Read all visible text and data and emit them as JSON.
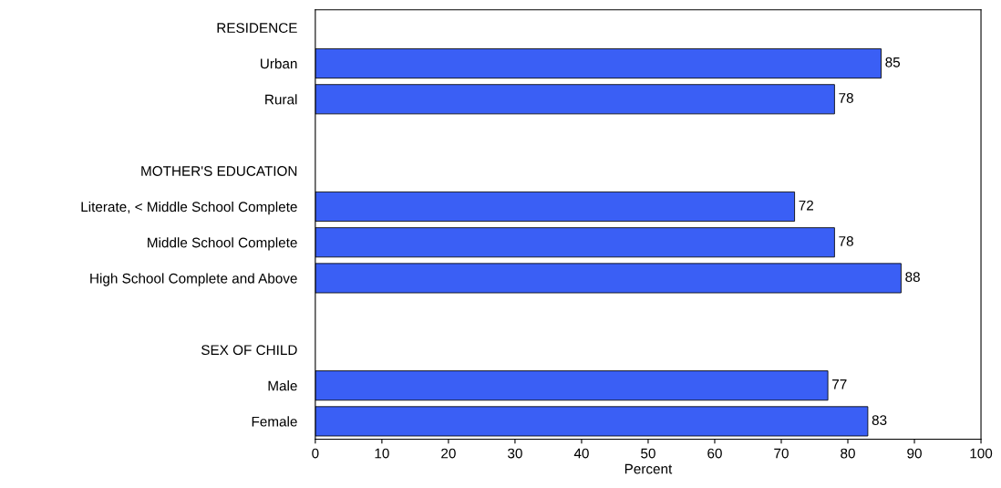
{
  "chart_data": {
    "type": "bar",
    "orientation": "horizontal",
    "xlabel": "Percent",
    "categories": [
      "RESIDENCE",
      "Urban",
      "Rural",
      null,
      "MOTHER'S EDUCATION",
      "Literate, < Middle School Complete",
      "Middle School Complete",
      "High School Complete and Above",
      null,
      "SEX OF CHILD",
      "Male",
      "Female"
    ],
    "values": [
      null,
      85,
      78,
      null,
      null,
      72,
      78,
      88,
      null,
      null,
      77,
      83
    ],
    "color": "#3a5ff5",
    "xlim": [
      0,
      100
    ],
    "xticks": [
      0,
      10,
      20,
      30,
      40,
      50,
      60,
      70,
      80,
      90,
      100
    ],
    "data_labels": true,
    "grid": false,
    "legend": false
  }
}
